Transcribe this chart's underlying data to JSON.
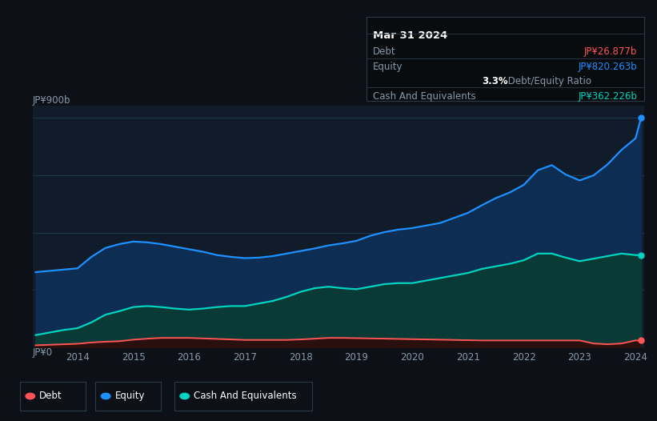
{
  "background_color": "#0d1117",
  "plot_bg_color": "#111c2b",
  "ylabel_top": "JP¥900b",
  "ylabel_bottom": "JP¥0",
  "x_labels": [
    "2014",
    "2015",
    "2016",
    "2017",
    "2018",
    "2019",
    "2020",
    "2021",
    "2022",
    "2023",
    "2024"
  ],
  "tooltip": {
    "date": "Mar 31 2024",
    "debt_label": "Debt",
    "debt_value": "JP¥26.877b",
    "equity_label": "Equity",
    "equity_value": "JP¥820.263b",
    "ratio_bold": "3.3%",
    "ratio_rest": " Debt/Equity Ratio",
    "cash_label": "Cash And Equivalents",
    "cash_value": "JP¥362.226b"
  },
  "legend": [
    {
      "label": "Debt",
      "color": "#ff5555"
    },
    {
      "label": "Equity",
      "color": "#1e90ff"
    },
    {
      "label": "Cash And Equivalents",
      "color": "#00d4c0"
    }
  ],
  "debt_color": "#ff5555",
  "equity_color": "#1e90ff",
  "cash_color": "#00d4c0",
  "equity_fill_color": "#0d2d52",
  "cash_fill_color": "#0a3a35",
  "debt_fill_color": "#2a0f0f",
  "years": [
    2013.25,
    2013.5,
    2013.75,
    2014.0,
    2014.25,
    2014.5,
    2014.75,
    2015.0,
    2015.25,
    2015.5,
    2015.75,
    2016.0,
    2016.25,
    2016.5,
    2016.75,
    2017.0,
    2017.25,
    2017.5,
    2017.75,
    2018.0,
    2018.25,
    2018.5,
    2018.75,
    2019.0,
    2019.25,
    2019.5,
    2019.75,
    2020.0,
    2020.25,
    2020.5,
    2020.75,
    2021.0,
    2021.25,
    2021.5,
    2021.75,
    2022.0,
    2022.25,
    2022.5,
    2022.75,
    2023.0,
    2023.25,
    2023.5,
    2023.75,
    2024.0,
    2024.1
  ],
  "equity_values": [
    295,
    300,
    305,
    310,
    355,
    390,
    405,
    415,
    412,
    405,
    395,
    385,
    375,
    362,
    355,
    350,
    352,
    358,
    368,
    378,
    388,
    400,
    408,
    418,
    438,
    452,
    462,
    468,
    478,
    488,
    508,
    528,
    558,
    586,
    608,
    638,
    695,
    715,
    678,
    655,
    675,
    718,
    775,
    820,
    900
  ],
  "cash_values": [
    48,
    58,
    68,
    75,
    98,
    128,
    142,
    158,
    162,
    158,
    152,
    148,
    152,
    158,
    162,
    162,
    172,
    182,
    198,
    218,
    232,
    238,
    232,
    228,
    238,
    248,
    252,
    252,
    262,
    272,
    282,
    292,
    308,
    318,
    328,
    342,
    368,
    368,
    352,
    338,
    348,
    358,
    368,
    362,
    362
  ],
  "debt_values": [
    8,
    10,
    12,
    14,
    19,
    22,
    24,
    30,
    34,
    37,
    37,
    37,
    35,
    33,
    31,
    29,
    29,
    29,
    29,
    31,
    34,
    37,
    37,
    36,
    35,
    34,
    33,
    32,
    31,
    30,
    29,
    28,
    27,
    27,
    27,
    27,
    27,
    27,
    27,
    27,
    15,
    12,
    15,
    27,
    27
  ]
}
